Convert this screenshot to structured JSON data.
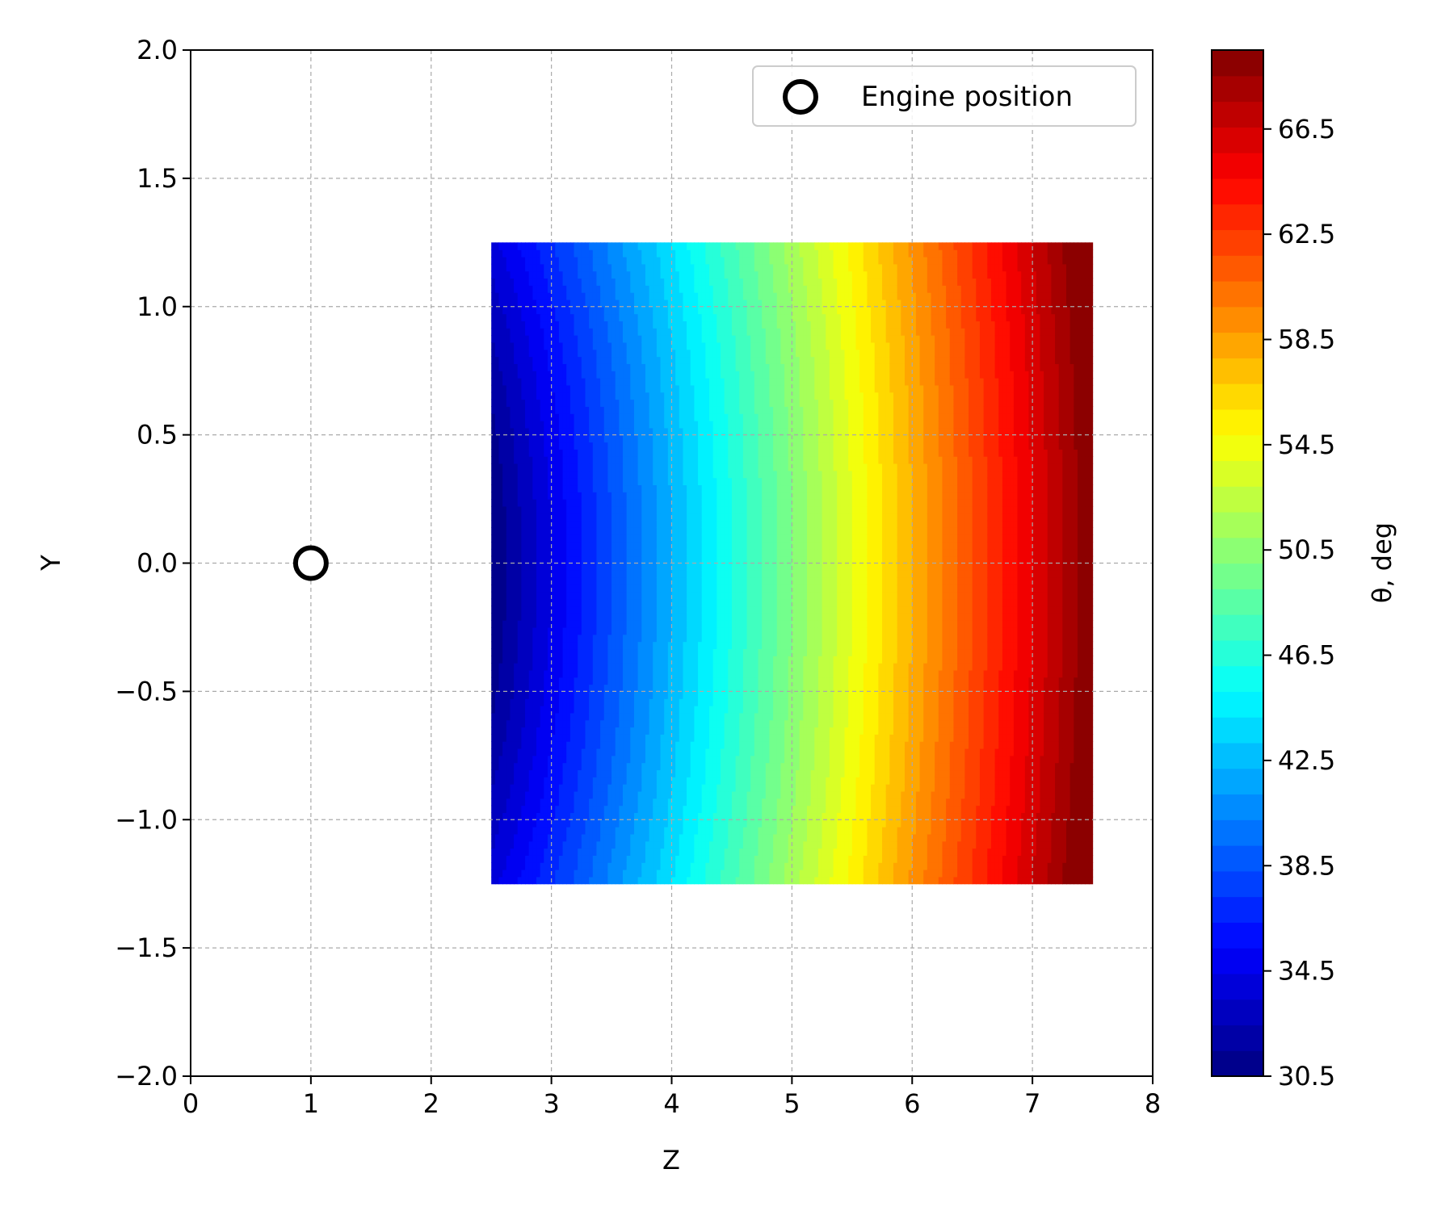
{
  "chart_data": {
    "type": "heatmap",
    "colormap": "jet",
    "xlabel": "Z",
    "ylabel": "Y",
    "xlim": [
      0,
      8
    ],
    "ylim": [
      -2.0,
      2.0
    ],
    "xticks": [
      "0",
      "1",
      "2",
      "3",
      "4",
      "5",
      "6",
      "7",
      "8"
    ],
    "yticks": [
      "−2.0",
      "−1.5",
      "−1.0",
      "−0.5",
      "0.0",
      "0.5",
      "1.0",
      "1.5",
      "2.0"
    ],
    "grid": true,
    "field": {
      "z_range": [
        2.5,
        7.5
      ],
      "y_range": [
        -1.25,
        1.25
      ],
      "value_min": 30.5,
      "value_max": 69.5,
      "levels": 40
    },
    "marker": {
      "label": "Engine position",
      "z": 1,
      "y": 0.0,
      "style": "open-circle"
    },
    "legend": {
      "position": "top-right",
      "entries": [
        "Engine position"
      ]
    },
    "colorbar": {
      "label": "θ, deg",
      "range": [
        30.5,
        69.5
      ],
      "ticks": [
        "30.5",
        "34.5",
        "38.5",
        "42.5",
        "46.5",
        "50.5",
        "54.5",
        "58.5",
        "62.5",
        "66.5"
      ]
    }
  }
}
